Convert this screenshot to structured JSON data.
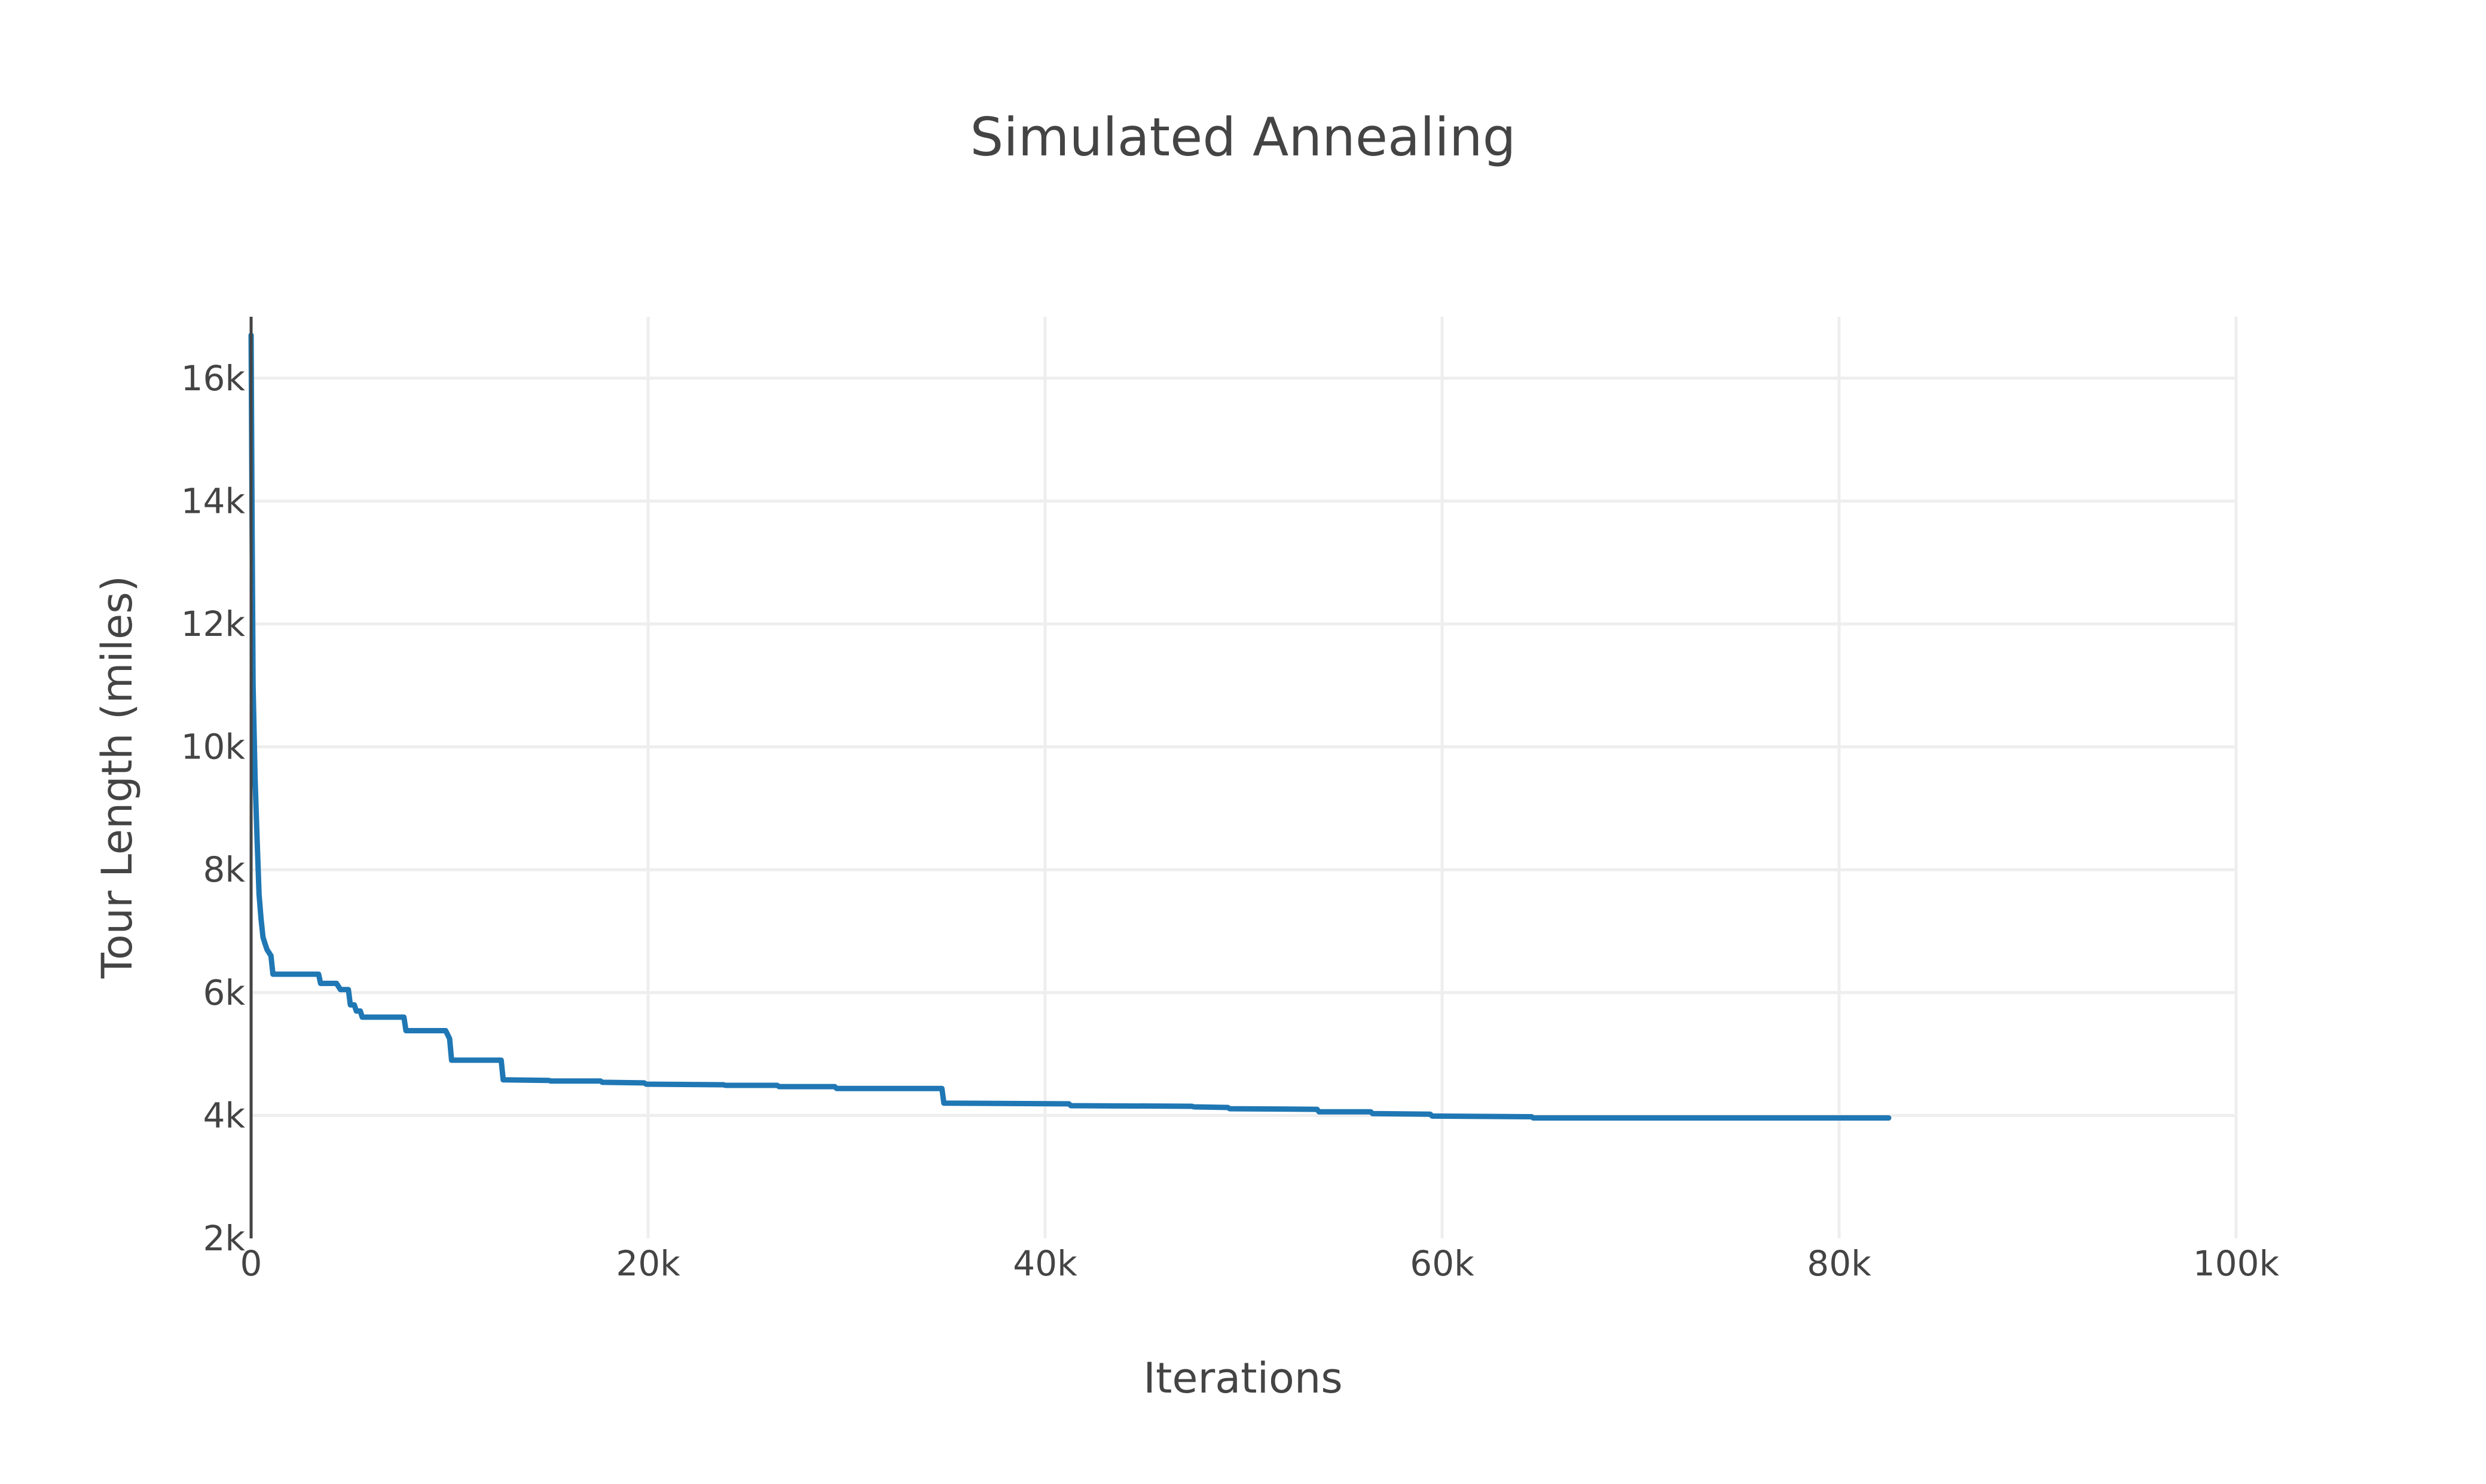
{
  "chart_data": {
    "type": "line",
    "title": "Simulated Annealing",
    "xlabel": "Iterations",
    "ylabel": "Tour Length (miles)",
    "xlim": [
      0,
      100000
    ],
    "ylim": [
      2000,
      17000
    ],
    "x_ticks": [
      0,
      20000,
      40000,
      60000,
      80000,
      100000
    ],
    "x_tick_labels": [
      "0",
      "20k",
      "40k",
      "60k",
      "80k",
      "100k"
    ],
    "y_ticks": [
      2000,
      4000,
      6000,
      8000,
      10000,
      12000,
      14000,
      16000
    ],
    "y_tick_labels": [
      "2k",
      "4k",
      "6k",
      "8k",
      "10k",
      "12k",
      "14k",
      "16k"
    ],
    "grid": true,
    "legend": "none",
    "series": [
      {
        "color": "#1f77b4",
        "x": [
          0,
          50,
          100,
          200,
          300,
          400,
          500,
          600,
          700,
          800,
          1000,
          1100,
          3400,
          3500,
          4300,
          4500,
          4900,
          5000,
          5200,
          5300,
          5500,
          5600,
          7700,
          7800,
          9800,
          10000,
          10100,
          12600,
          12700,
          15000,
          15100,
          17600,
          17700,
          19800,
          19900,
          23800,
          23900,
          26500,
          26600,
          29400,
          29500,
          34800,
          34900,
          41200,
          41300,
          47400,
          47500,
          49200,
          49300,
          53700,
          53800,
          56400,
          56500,
          59400,
          59500,
          64500,
          64600,
          82500
        ],
        "y": [
          16700,
          13500,
          11000,
          9500,
          8500,
          7600,
          7200,
          6900,
          6800,
          6700,
          6600,
          6300,
          6300,
          6150,
          6150,
          6050,
          6050,
          5800,
          5800,
          5700,
          5700,
          5600,
          5600,
          5380,
          5380,
          5250,
          4900,
          4900,
          4580,
          4570,
          4560,
          4560,
          4540,
          4530,
          4510,
          4500,
          4490,
          4490,
          4470,
          4470,
          4440,
          4440,
          4200,
          4190,
          4160,
          4150,
          4140,
          4130,
          4110,
          4100,
          4060,
          4060,
          4030,
          4020,
          3990,
          3980,
          3960,
          3960
        ]
      }
    ]
  }
}
